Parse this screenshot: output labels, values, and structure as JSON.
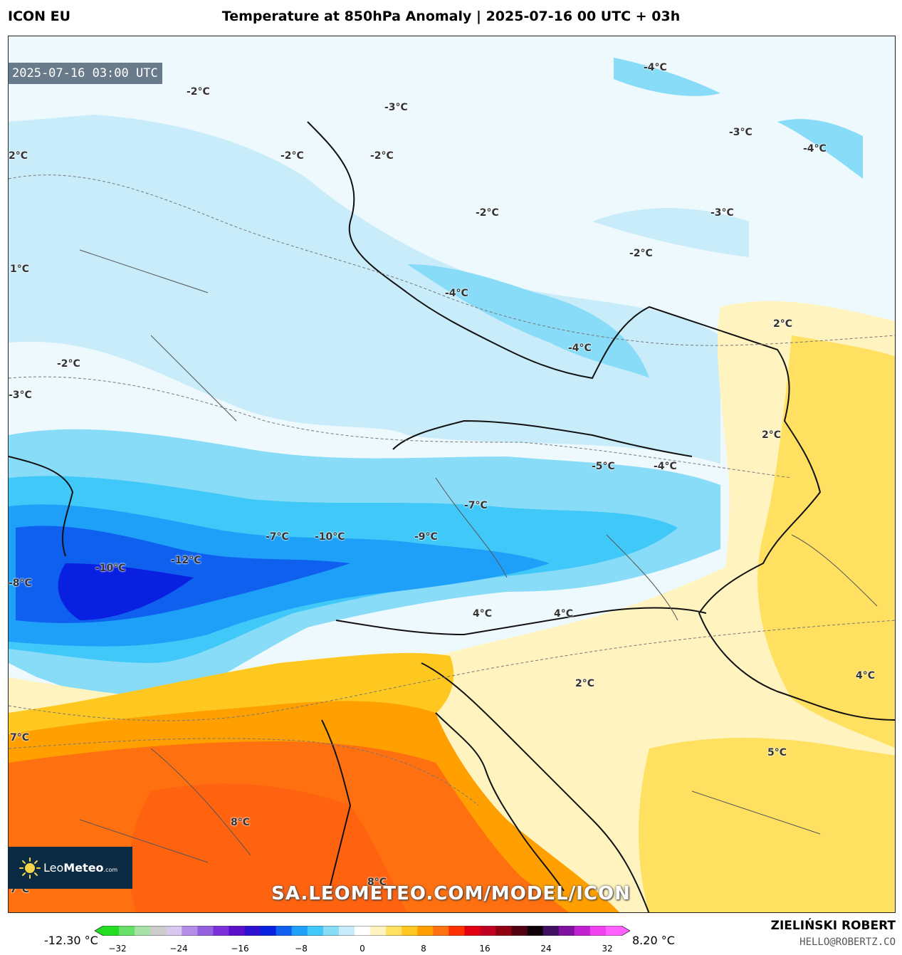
{
  "header": {
    "model": "ICON EU",
    "title": "Temperature at 850hPa Anomaly | 2025-07-16 00 UTC + 03h"
  },
  "map": {
    "timestamp": "2025-07-16 03:00 UTC",
    "labels": [
      {
        "id": "l1",
        "text": "-2°C"
      },
      {
        "id": "l2",
        "text": "-3°C"
      },
      {
        "id": "l3",
        "text": "-4°C"
      },
      {
        "id": "l4",
        "text": "-2°C"
      },
      {
        "id": "l5",
        "text": "-2°C"
      },
      {
        "id": "l6",
        "text": "2°C"
      },
      {
        "id": "l7",
        "text": "-3°C"
      },
      {
        "id": "l8",
        "text": "-4°C"
      },
      {
        "id": "l9",
        "text": "-2°C"
      },
      {
        "id": "l10",
        "text": "-3°C"
      },
      {
        "id": "l11",
        "text": "-2°C"
      },
      {
        "id": "l12",
        "text": "1°C"
      },
      {
        "id": "l13",
        "text": "-4°C"
      },
      {
        "id": "l14",
        "text": "2°C"
      },
      {
        "id": "l15",
        "text": "-4°C"
      },
      {
        "id": "l16",
        "text": "-2°C"
      },
      {
        "id": "l17",
        "text": "-3°C"
      },
      {
        "id": "l18",
        "text": "2°C"
      },
      {
        "id": "l19",
        "text": "-5°C"
      },
      {
        "id": "l20",
        "text": "-4°C"
      },
      {
        "id": "l21",
        "text": "-7°C"
      },
      {
        "id": "l22",
        "text": "-7°C"
      },
      {
        "id": "l23",
        "text": "-10°C"
      },
      {
        "id": "l24",
        "text": "-9°C"
      },
      {
        "id": "l25",
        "text": "-12°C"
      },
      {
        "id": "l26",
        "text": "-10°C"
      },
      {
        "id": "l27",
        "text": "-8°C"
      },
      {
        "id": "l28",
        "text": "4°C"
      },
      {
        "id": "l29",
        "text": "4°C"
      },
      {
        "id": "l30",
        "text": "2°C"
      },
      {
        "id": "l31",
        "text": "4°C"
      },
      {
        "id": "l32",
        "text": "7°C"
      },
      {
        "id": "l33",
        "text": "5°C"
      },
      {
        "id": "l34",
        "text": "8°C"
      },
      {
        "id": "l35",
        "text": "8°C"
      },
      {
        "id": "l36",
        "text": "7°C"
      }
    ]
  },
  "logo": {
    "brand_light": "Leo",
    "brand_bold": "Meteo",
    "suffix": ".com"
  },
  "watermark": "SA.LEOMETEO.COM/MODEL/ICON",
  "colorbar": {
    "min_label": "-12.30 °C",
    "max_label": "8.20 °C",
    "ticks": [
      "−32",
      "−24",
      "−16",
      "−8",
      "0",
      "8",
      "16",
      "24",
      "32"
    ],
    "colors": [
      "#22dd22",
      "#66e066",
      "#a8e0a8",
      "#cccccc",
      "#d8c8ee",
      "#b48ee6",
      "#9460e0",
      "#7a30d8",
      "#5a10c8",
      "#2e10d0",
      "#0a20e0",
      "#1060f0",
      "#1ea0f8",
      "#40c8f8",
      "#88dcf8",
      "#c8ecfa",
      "#ffffff",
      "#fff4c0",
      "#ffe060",
      "#ffc820",
      "#ffa000",
      "#ff7010",
      "#ff3000",
      "#e00010",
      "#c00020",
      "#900010",
      "#500010",
      "#100008",
      "#401060",
      "#8010a0",
      "#c020d0",
      "#f040f0",
      "#ff60ff"
    ]
  },
  "author": {
    "name": "ZIELIŃSKI ROBERT",
    "email": "HELLO@ROBERTZ.CO"
  }
}
